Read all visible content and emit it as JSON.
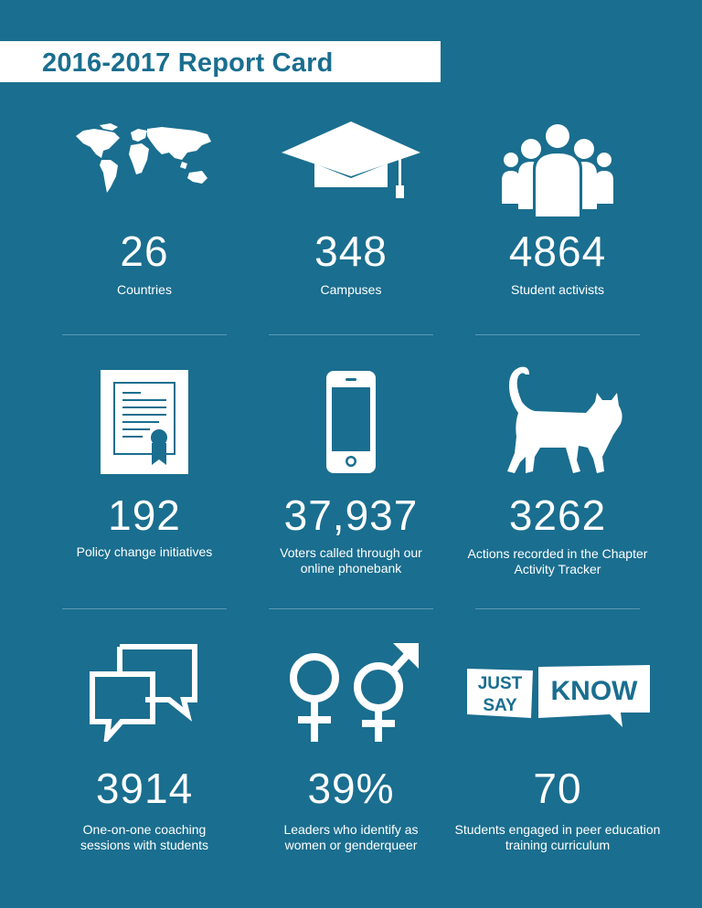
{
  "title": "2016-2017 Report Card",
  "stats": [
    {
      "icon": "world-map-icon",
      "value": "26",
      "label": "Countries"
    },
    {
      "icon": "graduation-cap-icon",
      "value": "348",
      "label": "Campuses"
    },
    {
      "icon": "people-group-icon",
      "value": "4864",
      "label": "Student activists"
    },
    {
      "icon": "certificate-icon",
      "value": "192",
      "label": "Policy change initiatives"
    },
    {
      "icon": "smartphone-icon",
      "value": "37,937",
      "label": "Voters called through our online phonebank"
    },
    {
      "icon": "cat-icon",
      "value": "3262",
      "label": "Actions recorded in the Chapter Activity Tracker"
    },
    {
      "icon": "chat-bubbles-icon",
      "value": "3914",
      "label": "One-on-one coaching sessions with students"
    },
    {
      "icon": "gender-symbols-icon",
      "value": "39%",
      "label": "Leaders who identify as women or genderqueer"
    },
    {
      "icon": "just-say-know-logo",
      "value": "70",
      "label": "Students engaged in peer education training curriculum"
    }
  ],
  "logo_text": {
    "just": "JUST",
    "say": "SAY",
    "know": "KNOW"
  }
}
